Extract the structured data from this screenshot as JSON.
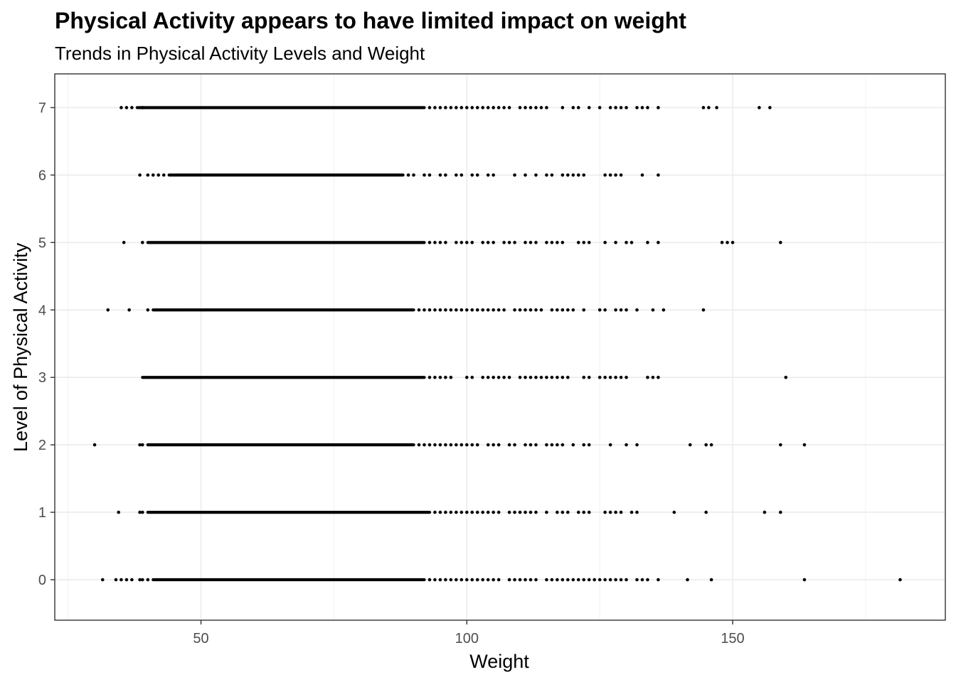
{
  "chart_data": {
    "type": "scatter",
    "title": "Physical Activity appears to have limited impact on weight",
    "subtitle": "Trends in Physical Activity Levels and Weight",
    "xlabel": "Weight",
    "ylabel": "Level of Physical Activity",
    "xlim": [
      22.5,
      190
    ],
    "ylim": [
      -0.6,
      7.5
    ],
    "xticks": [
      50,
      100,
      150
    ],
    "yticks": [
      0,
      1,
      2,
      3,
      4,
      5,
      6,
      7
    ],
    "grid": true,
    "point_color": "#000000",
    "series": [
      {
        "level": 7,
        "dense": [
          38,
          92
        ],
        "points": [
          35,
          36,
          37,
          39,
          93,
          94,
          95,
          96,
          97,
          98,
          99,
          100,
          101,
          102,
          103,
          104,
          105,
          106,
          107,
          108,
          110,
          111,
          112,
          113,
          114,
          115,
          118,
          120,
          121,
          123,
          125,
          127,
          128,
          129,
          130,
          132,
          133,
          134,
          136,
          144.5,
          145.5,
          147,
          155,
          157
        ]
      },
      {
        "level": 6,
        "dense": [
          44,
          88
        ],
        "points": [
          38.5,
          40,
          41,
          42,
          43,
          89,
          90,
          92,
          93,
          95,
          96,
          98,
          99,
          101,
          102,
          104,
          105,
          109,
          111,
          113,
          115,
          116,
          118,
          119,
          120,
          121,
          122,
          126,
          127,
          128,
          129,
          133,
          136
        ]
      },
      {
        "level": 5,
        "dense": [
          40,
          92
        ],
        "points": [
          35.5,
          39,
          93,
          94,
          95,
          96,
          98,
          99,
          100,
          101,
          103,
          104,
          105,
          107,
          108,
          109,
          111,
          112,
          113,
          115,
          116,
          117,
          118,
          121,
          122,
          123,
          126,
          128,
          130,
          131,
          134,
          136,
          148,
          149,
          150,
          159
        ]
      },
      {
        "level": 4,
        "dense": [
          41,
          90
        ],
        "points": [
          32.5,
          36.5,
          40,
          91,
          92,
          93,
          94,
          95,
          96,
          97,
          98,
          99,
          100,
          101,
          102,
          103,
          104,
          105,
          106,
          107,
          109,
          110,
          111,
          112,
          113,
          114,
          116,
          117,
          118,
          119,
          120,
          122,
          125,
          126,
          128,
          129,
          130,
          132,
          135,
          137,
          144.5
        ]
      },
      {
        "level": 3,
        "dense": [
          39,
          92
        ],
        "points": [
          93,
          94,
          95,
          96,
          97,
          100,
          101,
          103,
          104,
          105,
          106,
          107,
          108,
          110,
          111,
          112,
          113,
          114,
          115,
          116,
          117,
          118,
          119,
          122,
          123,
          125,
          126,
          127,
          128,
          129,
          130,
          134,
          135,
          136,
          160
        ]
      },
      {
        "level": 2,
        "dense": [
          40,
          90
        ],
        "points": [
          30,
          38.5,
          39,
          91,
          92,
          93,
          94,
          95,
          96,
          97,
          98,
          99,
          100,
          101,
          102,
          104,
          105,
          106,
          108,
          109,
          111,
          112,
          113,
          115,
          116,
          117,
          118,
          120,
          122,
          123,
          127,
          130,
          132,
          142,
          145,
          146,
          159,
          163.5
        ]
      },
      {
        "level": 1,
        "dense": [
          40,
          93
        ],
        "points": [
          34.5,
          38.5,
          39,
          94,
          95,
          96,
          97,
          98,
          99,
          100,
          101,
          102,
          103,
          104,
          105,
          106,
          108,
          109,
          110,
          111,
          112,
          113,
          115,
          117,
          118,
          119,
          121,
          122,
          123,
          126,
          127,
          128,
          129,
          131,
          132,
          139,
          145,
          156,
          159
        ]
      },
      {
        "level": 0,
        "dense": [
          41,
          92
        ],
        "points": [
          31.5,
          34,
          35,
          36,
          37,
          38.5,
          39,
          40,
          93,
          94,
          95,
          96,
          97,
          98,
          99,
          100,
          101,
          102,
          103,
          104,
          105,
          106,
          108,
          109,
          110,
          111,
          112,
          113,
          115,
          116,
          117,
          118,
          119,
          120,
          121,
          122,
          123,
          124,
          125,
          126,
          127,
          128,
          129,
          130,
          132,
          133,
          134,
          136,
          141.5,
          146,
          163.5,
          181.5
        ]
      }
    ]
  }
}
